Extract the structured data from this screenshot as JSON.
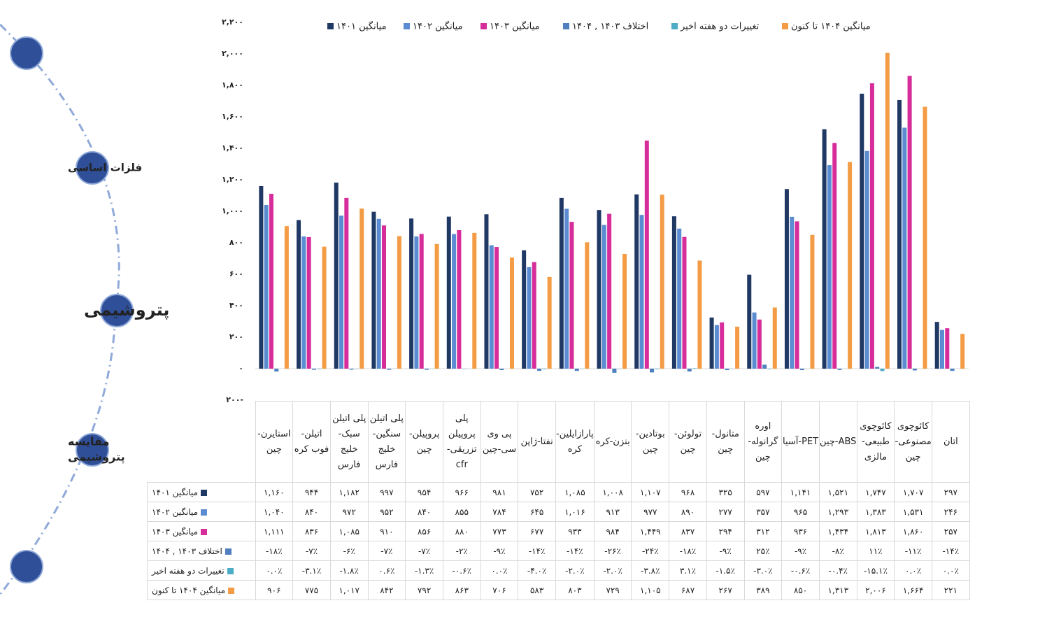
{
  "sidebar": {
    "items": [
      {
        "lines": [
          "فلزات اساسی"
        ]
      },
      {
        "lines": [
          "پتروشیمی"
        ]
      },
      {
        "lines": [
          "مقایسه",
          "پتروشیمی"
        ]
      }
    ]
  },
  "chart_data": {
    "type": "bar",
    "categories": [
      "استایرن-چین",
      "اتیلن-فوب کره",
      "پلی اتیلن سبک-خلیج فارس",
      "پلی اتیلن سنگین-خلیج فارس",
      "پروپیلن-چین",
      "پلی پروپیلن تزریقی-cfr",
      "پی وی سی-چین",
      "نفتا-ژاپن",
      "پارازایلین-کره",
      "بنزن-کره",
      "بوتادین-چین",
      "تولوئن-چین",
      "متانول-چین",
      "اوره گرانوله-چین",
      "PET-آسیا",
      "ABS-چین",
      "کائوچوی طبیعی-مالزی",
      "کائوچوی مصنوعی-چین",
      "اتان"
    ],
    "ylim": [
      -200,
      2200
    ],
    "yticks": [
      {
        "value": 2200,
        "label": "۲,۲۰۰"
      },
      {
        "value": 2000,
        "label": "۲,۰۰۰"
      },
      {
        "value": 1800,
        "label": "۱,۸۰۰"
      },
      {
        "value": 1600,
        "label": "۱,۶۰۰"
      },
      {
        "value": 1400,
        "label": "۱,۴۰۰"
      },
      {
        "value": 1200,
        "label": "۱,۲۰۰"
      },
      {
        "value": 1000,
        "label": "۱,۰۰۰"
      },
      {
        "value": 800,
        "label": "۸۰۰"
      },
      {
        "value": 600,
        "label": "۶۰۰"
      },
      {
        "value": 400,
        "label": "۴۰۰"
      },
      {
        "value": 200,
        "label": "۲۰۰"
      },
      {
        "value": 0,
        "label": "۰"
      },
      {
        "value": -200,
        "label": "۲۰۰-"
      }
    ],
    "grid": false,
    "legend": "top",
    "series": [
      {
        "name": "میانگین ۱۴۰۱",
        "color": "#1f3864",
        "values": [
          1160,
          944,
          1182,
          997,
          954,
          966,
          981,
          752,
          1085,
          1008,
          1107,
          968,
          325,
          597,
          1141,
          1521,
          1747,
          1707,
          297
        ],
        "value_labels": [
          "۱,۱۶۰",
          "۹۴۴",
          "۱,۱۸۲",
          "۹۹۷",
          "۹۵۴",
          "۹۶۶",
          "۹۸۱",
          "۷۵۲",
          "۱,۰۸۵",
          "۱,۰۰۸",
          "۱,۱۰۷",
          "۹۶۸",
          "۳۲۵",
          "۵۹۷",
          "۱,۱۴۱",
          "۱,۵۲۱",
          "۱,۷۴۷",
          "۱,۷۰۷",
          "۲۹۷"
        ]
      },
      {
        "name": "میانگین ۱۴۰۲",
        "color": "#5b8bd0",
        "values": [
          1040,
          840,
          972,
          952,
          840,
          855,
          784,
          645,
          1016,
          913,
          977,
          890,
          277,
          357,
          965,
          1293,
          1383,
          1531,
          246
        ],
        "value_labels": [
          "۱,۰۴۰",
          "۸۴۰",
          "۹۷۲",
          "۹۵۲",
          "۸۴۰",
          "۸۵۵",
          "۷۸۴",
          "۶۴۵",
          "۱,۰۱۶",
          "۹۱۳",
          "۹۷۷",
          "۸۹۰",
          "۲۷۷",
          "۳۵۷",
          "۹۶۵",
          "۱,۲۹۳",
          "۱,۳۸۳",
          "۱,۵۳۱",
          "۲۴۶"
        ]
      },
      {
        "name": "میانگین ۱۴۰۳",
        "color": "#d62d9b",
        "values": [
          1111,
          836,
          1085,
          910,
          856,
          880,
          773,
          677,
          933,
          984,
          1449,
          837,
          294,
          312,
          936,
          1434,
          1813,
          1860,
          257
        ],
        "value_labels": [
          "۱,۱۱۱",
          "۸۳۶",
          "۱,۰۸۵",
          "۹۱۰",
          "۸۵۶",
          "۸۸۰",
          "۷۷۳",
          "۶۷۷",
          "۹۳۳",
          "۹۸۴",
          "۱,۴۴۹",
          "۸۳۷",
          "۲۹۴",
          "۳۱۲",
          "۹۳۶",
          "۱,۴۳۴",
          "۱,۸۱۳",
          "۱,۸۶۰",
          "۲۵۷"
        ]
      },
      {
        "name": "اختلاف ۱۴۰۳ , ۱۴۰۴",
        "color": "#4f7fbf",
        "values": [
          -18,
          -7,
          -6,
          -7,
          -7,
          -2,
          -9,
          -14,
          -14,
          -26,
          -24,
          -18,
          -9,
          25,
          -9,
          -8,
          11,
          -11,
          -14
        ],
        "value_labels": [
          "-۱۸٪",
          "-۷٪",
          "-۶٪",
          "-۷٪",
          "-۷٪",
          "-۲٪",
          "-۹٪",
          "-۱۴٪",
          "-۱۴٪",
          "-۲۶٪",
          "-۲۴٪",
          "-۱۸٪",
          "-۹٪",
          "۲۵٪",
          "-۹٪",
          "-۸٪",
          "۱۱٪",
          "-۱۱٪",
          "-۱۴٪"
        ]
      },
      {
        "name": "تغییرات دو هفته اخیر",
        "color": "#4bacc6",
        "values": [
          0.0,
          -3.1,
          -1.8,
          0.6,
          -1.3,
          -0.6,
          0.0,
          -4.0,
          -2.0,
          -2.0,
          -3.8,
          3.1,
          -1.5,
          -3.0,
          -0.6,
          -0.4,
          -15.1,
          0.0,
          0.0
        ],
        "value_labels": [
          "۰.۰٪",
          "-۳.۱٪",
          "-۱.۸٪",
          "۰.۶٪",
          "-۱.۳٪",
          "-۰.۶٪",
          "۰.۰٪",
          "-۴.۰٪",
          "-۲.۰٪",
          "-۲.۰٪",
          "-۳.۸٪",
          "۳.۱٪",
          "-۱.۵٪",
          "-۳.۰٪",
          "-۰.۶٪",
          "-۰.۴٪",
          "-۱۵.۱٪",
          "۰.۰٪",
          "۰.۰٪"
        ]
      },
      {
        "name": "میانگین ۱۴۰۴ تا کنون",
        "color": "#f39c45",
        "values": [
          906,
          775,
          1017,
          842,
          792,
          863,
          706,
          583,
          803,
          729,
          1105,
          687,
          267,
          389,
          850,
          1313,
          2006,
          1664,
          221
        ],
        "value_labels": [
          "۹۰۶",
          "۷۷۵",
          "۱,۰۱۷",
          "۸۴۲",
          "۷۹۲",
          "۸۶۳",
          "۷۰۶",
          "۵۸۳",
          "۸۰۳",
          "۷۲۹",
          "۱,۱۰۵",
          "۶۸۷",
          "۲۶۷",
          "۳۸۹",
          "۸۵۰",
          "۱,۳۱۳",
          "۲,۰۰۶",
          "۱,۶۶۴",
          "۲۲۱"
        ]
      }
    ]
  }
}
